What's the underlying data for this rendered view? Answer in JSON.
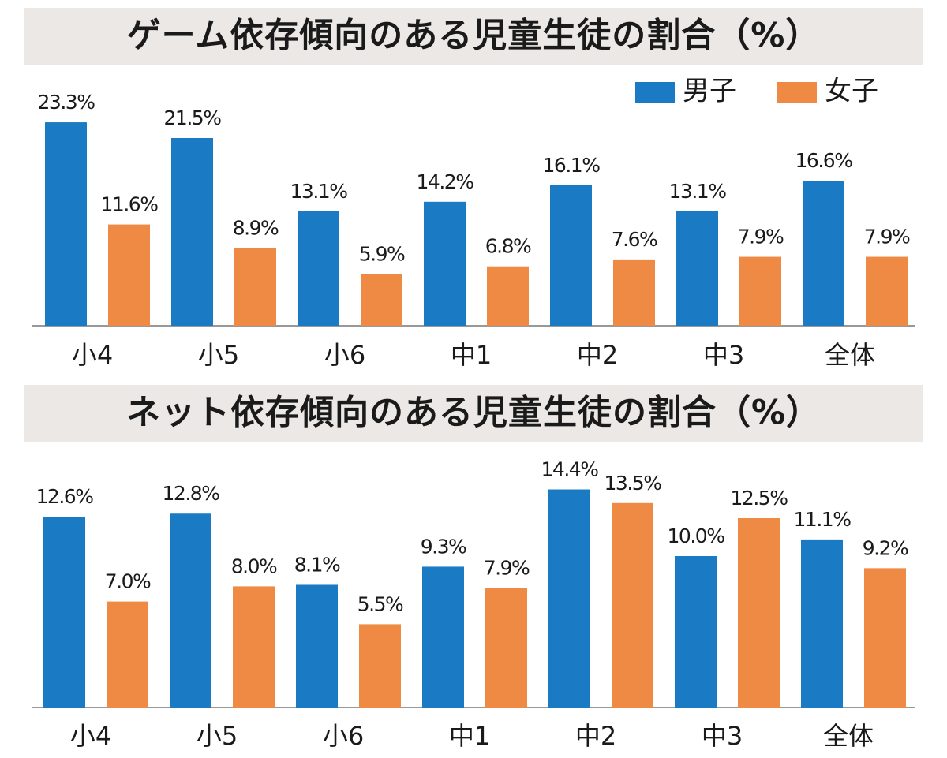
{
  "chart_data": [
    {
      "type": "bar",
      "title": "ゲーム依存傾向のある児童生徒の割合（%）",
      "categories": [
        "小4",
        "小5",
        "小6",
        "中1",
        "中2",
        "中3",
        "全体"
      ],
      "series": [
        {
          "name": "男子",
          "color": "#1a7bc4",
          "values": [
            23.3,
            21.5,
            13.1,
            14.2,
            16.1,
            13.1,
            16.6
          ],
          "value_labels": [
            "23.3%",
            "21.5%",
            "13.1%",
            "14.2%",
            "16.1%",
            "13.1%",
            "16.6%"
          ]
        },
        {
          "name": "女子",
          "color": "#ee8a44",
          "values": [
            11.6,
            8.9,
            5.9,
            6.8,
            7.6,
            7.9,
            7.9
          ],
          "value_labels": [
            "11.6%",
            "8.9%",
            "5.9%",
            "6.8%",
            "7.6%",
            "7.9%",
            "7.9%"
          ]
        }
      ],
      "legend": "top-right"
    },
    {
      "type": "bar",
      "title": "ネット依存傾向のある児童生徒の割合（%）",
      "categories": [
        "小4",
        "小5",
        "小6",
        "中1",
        "中2",
        "中3",
        "全体"
      ],
      "series": [
        {
          "color": "#1a7bc4",
          "values": [
            12.6,
            12.8,
            8.1,
            9.3,
            14.4,
            10.0,
            11.1
          ],
          "value_labels": [
            "12.6%",
            "12.8%",
            "8.1%",
            "9.3%",
            "14.4%",
            "10.0%",
            "11.1%"
          ]
        },
        {
          "color": "#ee8a44",
          "values": [
            7.0,
            8.0,
            5.5,
            7.9,
            13.5,
            12.5,
            9.2
          ],
          "value_labels": [
            "7.0%",
            "8.0%",
            "5.5%",
            "7.9%",
            "13.5%",
            "12.5%",
            "9.2%"
          ]
        }
      ]
    }
  ]
}
